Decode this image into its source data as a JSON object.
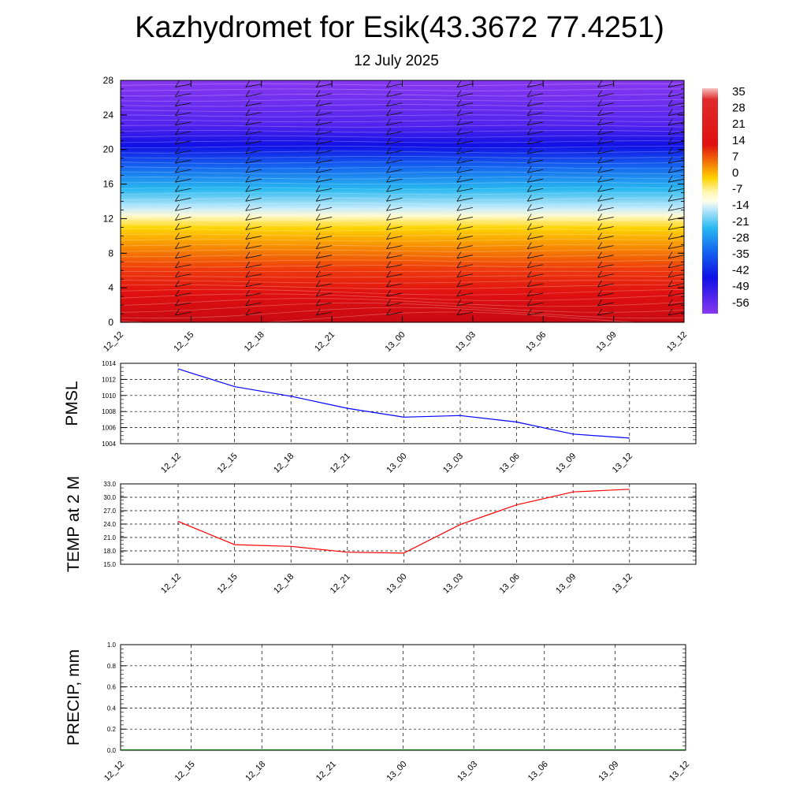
{
  "header": {
    "title": "Kazhydromet for Esik(43.3672 77.4251)",
    "date": "12 July 2025"
  },
  "colors": {
    "pmsl_line": "#0000ff",
    "temp_line": "#ff0000",
    "precip_line": "#006400",
    "colorbar_stops": [
      "#f6b3b3",
      "#d9101a",
      "#e8400a",
      "#f7a000",
      "#ffee60",
      "#ffffd8",
      "#8ad8f8",
      "#20b0f0",
      "#1060f0",
      "#1010e8",
      "#7030f0"
    ]
  },
  "chart_data": [
    {
      "type": "heatmap",
      "name": "cross-section",
      "x_ticks": [
        "12_12",
        "12_15",
        "12_18",
        "12_21",
        "13_00",
        "13_03",
        "13_06",
        "13_09",
        "13_12"
      ],
      "y_ticks": [
        "0",
        "4",
        "8",
        "12",
        "16",
        "20",
        "24",
        "28"
      ],
      "ylim": [
        0,
        28
      ],
      "colorbar_labels": [
        "35",
        "28",
        "21",
        "14",
        "7",
        "0",
        "-7",
        "-14",
        "-21",
        "-28",
        "-35",
        "-42",
        "-49",
        "-56"
      ],
      "wind_barbs": true
    },
    {
      "type": "line",
      "ylabel": "PMSL",
      "x": [
        "12_12",
        "12_15",
        "12_18",
        "12_21",
        "13_00",
        "13_03",
        "13_06",
        "13_09",
        "13_12"
      ],
      "values": [
        1013.3,
        1011.1,
        1009.9,
        1008.4,
        1007.3,
        1007.5,
        1006.7,
        1005.2,
        1004.7
      ],
      "ylim": [
        1004,
        1014
      ],
      "y_ticks": [
        "1014",
        "1012",
        "1010",
        "1008",
        "1006",
        "1004"
      ],
      "grid": true
    },
    {
      "type": "line",
      "ylabel": "TEMP at 2 M",
      "x": [
        "12_12",
        "12_15",
        "12_18",
        "12_21",
        "13_00",
        "13_03",
        "13_06",
        "13_09",
        "13_12"
      ],
      "values": [
        24.6,
        19.4,
        19.0,
        17.7,
        17.5,
        23.9,
        28.3,
        31.2,
        31.8
      ],
      "ylim": [
        15,
        33
      ],
      "y_ticks": [
        "33.0",
        "30.0",
        "27.0",
        "24.0",
        "21.0",
        "18.0",
        "15.0"
      ],
      "grid": true
    },
    {
      "type": "line",
      "ylabel": "PRECIP, mm",
      "x": [
        "12_12",
        "12_15",
        "12_18",
        "12_21",
        "13_00",
        "13_03",
        "13_06",
        "13_09",
        "13_12"
      ],
      "values": [
        0,
        0,
        0,
        0,
        0,
        0,
        0,
        0,
        0
      ],
      "ylim": [
        0,
        1
      ],
      "y_ticks": [
        "1.0",
        "0.8",
        "0.6",
        "0.4",
        "0.2",
        "0.0"
      ],
      "grid": true
    }
  ]
}
